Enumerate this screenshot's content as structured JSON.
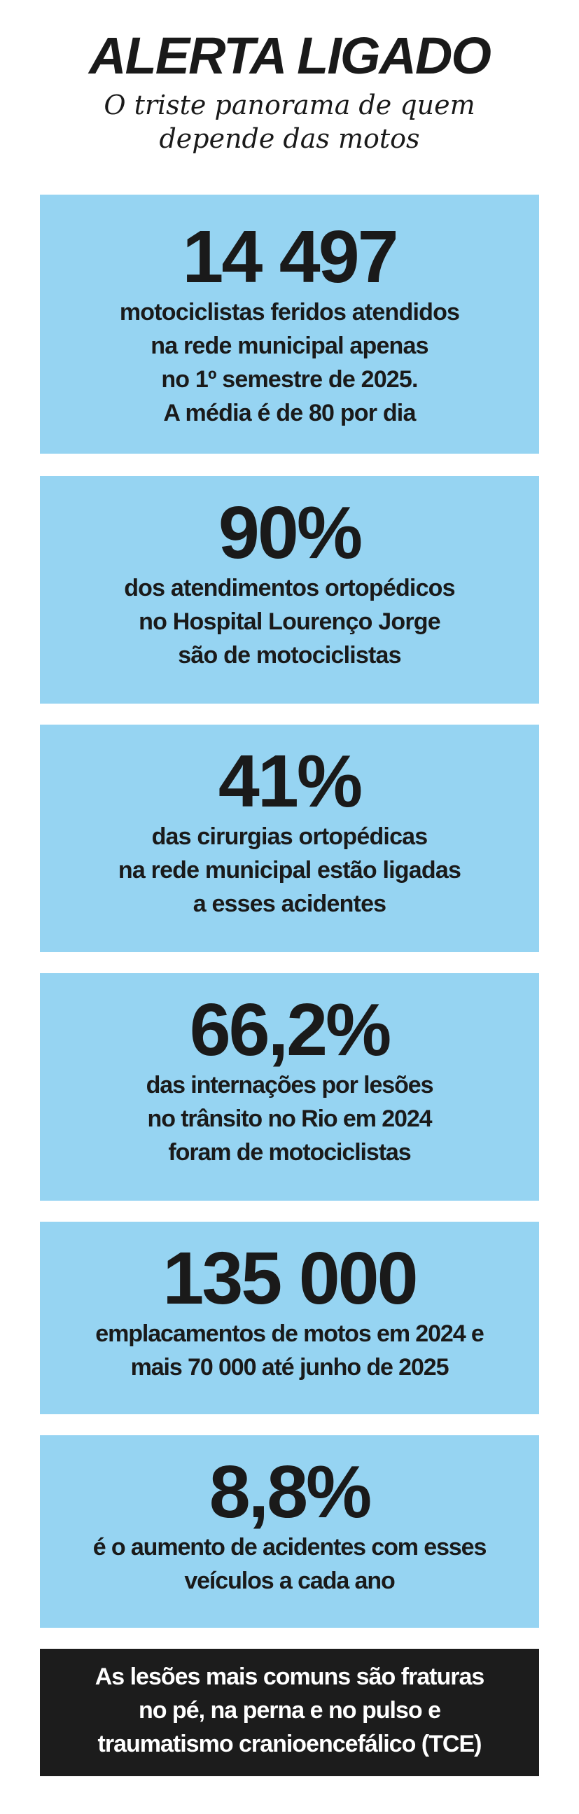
{
  "header": {
    "title": "ALERTA LIGADO",
    "subtitle": "O triste panorama de quem\ndepende das motos"
  },
  "stats": [
    {
      "value": "14 497",
      "text": "motociclistas feridos atendidos\nna rede municipal apenas\nno 1º semestre de 2025.\nA média é de 80 por dia"
    },
    {
      "value": "90%",
      "text": "dos atendimentos ortopédicos\nno Hospital Lourenço Jorge\nsão de motociclistas"
    },
    {
      "value": "41%",
      "text": "das cirurgias ortopédicas\nna rede municipal estão ligadas\na esses acidentes"
    },
    {
      "value": "66,2%",
      "text": "das internações por lesões\nno trânsito no Rio em 2024\nforam de motociclistas"
    },
    {
      "value": "135 000",
      "text": "emplacamentos de motos em 2024 e\nmais 70 000 até junho de 2025"
    },
    {
      "value": "8,8%",
      "text": "é o aumento de acidentes com esses\nveículos a cada ano"
    }
  ],
  "footnote": {
    "text": "As lesões mais comuns são fraturas\nno pé, na perna e no pulso e\ntraumatismo cranioencefálico (TCE)"
  },
  "colors": {
    "box_background": "#96d4f2",
    "footnote_background": "#1c1c1c",
    "text": "#1a1a1a"
  }
}
